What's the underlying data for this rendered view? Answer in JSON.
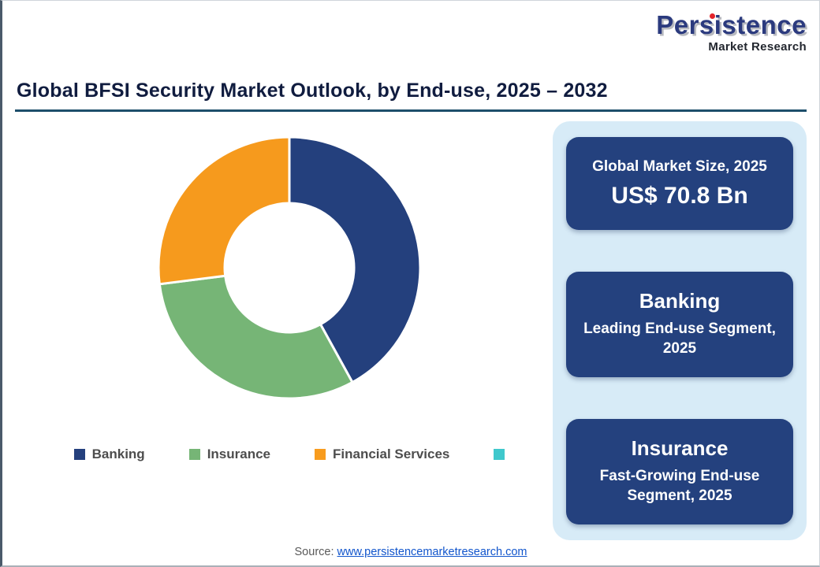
{
  "page": {
    "title": "Global BFSI Security Market Outlook, by End-use, 2025 – 2032",
    "source_label": "Source:",
    "source_link": "www.persistencemarketresearch.com"
  },
  "logo": {
    "brand": "Persistence",
    "subtitle": "Market Research",
    "brand_color": "#2b3a7e",
    "dot_color": "#e2242b"
  },
  "chart_data": {
    "type": "pie",
    "donut": true,
    "title": "Global BFSI Security Market Outlook, by End-use, 2025 – 2032",
    "categories": [
      "Banking",
      "Insurance",
      "Financial Services"
    ],
    "values": [
      42,
      31,
      27
    ],
    "colors": [
      "#24407d",
      "#76b576",
      "#f69a1d"
    ],
    "start_angle_deg": 0,
    "direction": "clockwise",
    "legend_position": "bottom",
    "legend": [
      {
        "label": "Banking",
        "color": "#24407d"
      },
      {
        "label": "Insurance",
        "color": "#76b576"
      },
      {
        "label": "Financial Services",
        "color": "#f89c1e"
      },
      {
        "label": "",
        "color": "#3fc8cc"
      }
    ]
  },
  "panel": {
    "cards": [
      {
        "line1": "Global Market Size, 2025",
        "line2": "US$ 70.8 Bn"
      },
      {
        "line1": "Banking",
        "line2": "Leading End-use Segment, 2025"
      },
      {
        "line1": "Insurance",
        "line2": "Fast-Growing End-use Segment, 2025"
      }
    ]
  }
}
